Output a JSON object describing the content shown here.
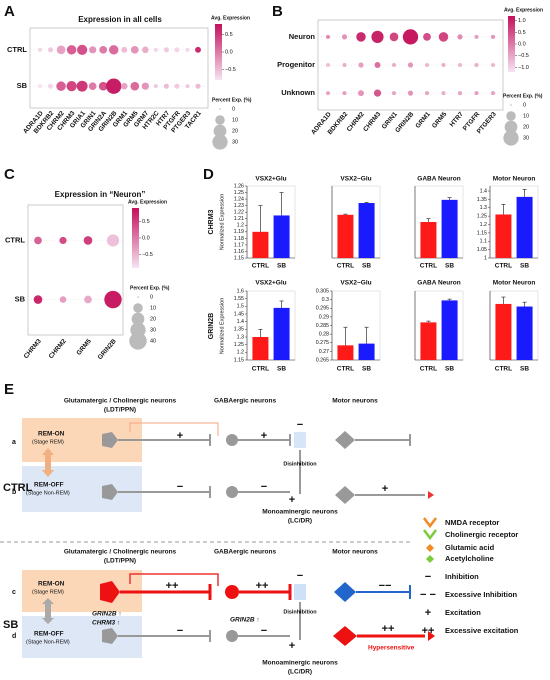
{
  "panel_labels": [
    "A",
    "B",
    "C",
    "D",
    "E"
  ],
  "chart_data": [
    {
      "type": "dot",
      "title": "Expression in all cells",
      "categories": [
        "ADRA1D",
        "BDKRB2",
        "CHRM2",
        "CHRM3",
        "GRIA1",
        "GRIN1",
        "GRIN2A",
        "GRIN2B",
        "GRM1",
        "GRM5",
        "GRM7",
        "HTR2C",
        "HTR7",
        "PTGFR",
        "PTGER3",
        "TACR1"
      ],
      "series": [
        {
          "name": "CTRL",
          "values": [
            -0.7,
            -0.6,
            -0.3,
            0.2,
            0.3,
            -0.2,
            0.0,
            0.1,
            -0.5,
            -0.2,
            -0.4,
            -0.7,
            -0.6,
            -0.7,
            -0.7,
            0.6
          ],
          "sizes": [
            1,
            2,
            8,
            10,
            12,
            5,
            6,
            10,
            3,
            6,
            4,
            1,
            2,
            2,
            1,
            3
          ]
        },
        {
          "name": "SB",
          "values": [
            -0.8,
            -0.7,
            0.2,
            0.4,
            0.5,
            0.0,
            0.3,
            0.7,
            -0.3,
            0.1,
            -0.2,
            -0.6,
            -0.5,
            -0.6,
            -0.6,
            -0.5
          ],
          "sizes": [
            1,
            2,
            10,
            12,
            14,
            6,
            8,
            30,
            4,
            8,
            5,
            1,
            2,
            2,
            1,
            2
          ]
        }
      ],
      "color_label": "Avg. Expression",
      "clim": [
        -0.8,
        0.8
      ],
      "cticks": [
        0.5,
        {
          "value": 0,
          "label": "0.0"
        },
        {
          "value": -0.5,
          "label": "−0.5"
        }
      ],
      "colormap": [
        "#f6e3f3",
        "#c4105a"
      ],
      "size_label": "Percent Exp. (%)",
      "size_ticks": [
        0,
        10,
        20,
        30
      ]
    },
    {
      "type": "dot",
      "categories": [
        "ADRA1D",
        "BDKRB2",
        "CHRM2",
        "CHRM3",
        "GRIN1",
        "GRIN2B",
        "GRM1",
        "GRM5",
        "HTR7",
        "PTGFR",
        "PTGER3"
      ],
      "series": [
        {
          "name": "Neuron",
          "values": [
            -0.2,
            -0.3,
            0.9,
            1.0,
            0.6,
            1.1,
            0.5,
            0.6,
            -0.2,
            -0.4,
            -0.3
          ],
          "sizes": [
            1,
            2,
            10,
            18,
            8,
            30,
            6,
            10,
            2,
            1,
            1
          ]
        },
        {
          "name": "Progenitor",
          "values": [
            -0.8,
            -0.6,
            -0.4,
            0.1,
            -0.6,
            -0.3,
            -0.7,
            -0.6,
            -0.7,
            -0.6,
            -0.7
          ],
          "sizes": [
            1,
            1,
            2,
            3,
            1,
            2,
            1,
            1,
            1,
            1,
            1
          ]
        },
        {
          "name": "Unknown",
          "values": [
            -0.5,
            -0.4,
            -0.3,
            0.4,
            -0.5,
            -0.3,
            -0.5,
            -0.6,
            -0.5,
            -0.4,
            -0.5
          ],
          "sizes": [
            1,
            1,
            3,
            5,
            1,
            2,
            1,
            1,
            1,
            1,
            1
          ]
        }
      ],
      "color_label": "Avg. Expression",
      "clim": [
        -1.2,
        1.2
      ],
      "cticks": [
        {
          "value": 1,
          "label": "1.0"
        },
        0.5,
        {
          "value": 0,
          "label": "0.0"
        },
        {
          "value": -0.5,
          "label": "−0.5"
        },
        {
          "value": -1,
          "label": "−1.0"
        }
      ],
      "colormap": [
        "#f6e3f3",
        "#c4105a"
      ],
      "size_label": "Percent Exp. (%)",
      "size_ticks": [
        0,
        10,
        20,
        30
      ]
    },
    {
      "type": "dot",
      "title": "Expression in “Neuron”",
      "categories": [
        "CHRM3",
        "CHRM2",
        "GRM5",
        "GRIN2B"
      ],
      "series": [
        {
          "name": "CTRL",
          "values": [
            0.2,
            0.4,
            0.5,
            -0.6
          ],
          "sizes": [
            6,
            5,
            8,
            18
          ]
        },
        {
          "name": "SB",
          "values": [
            0.7,
            -0.3,
            -0.4,
            0.8
          ],
          "sizes": [
            8,
            4,
            6,
            40
          ]
        }
      ],
      "color_label": "Avg. Expression",
      "clim": [
        -0.9,
        0.9
      ],
      "cticks": [
        0.5,
        {
          "value": 0,
          "label": "0.0"
        },
        {
          "value": -0.5,
          "label": "−0.5"
        }
      ],
      "colormap": [
        "#f6e3f3",
        "#c4105a"
      ],
      "size_label": "Percent Exp. (%)",
      "size_ticks": [
        0,
        10,
        20,
        30,
        40
      ]
    },
    {
      "type": "bar",
      "title": "VSX2+Glu",
      "categories": [
        "CTRL",
        "SB"
      ],
      "values": [
        1.19,
        1.215
      ],
      "errors": [
        0.04,
        0.035
      ],
      "colors": [
        "#ff1a1a",
        "#1a1aff"
      ],
      "ylim": [
        1.15,
        1.26
      ],
      "yticks": [
        1.15,
        1.16,
        1.17,
        1.18,
        1.19,
        1.2,
        1.21,
        1.22,
        1.23,
        1.24,
        1.25,
        1.26
      ]
    },
    {
      "type": "bar",
      "title": "VSX2−Glu",
      "categories": [
        "CTRL",
        "SB"
      ],
      "values": [
        0.66,
        0.84
      ],
      "errors": [
        0.01,
        0.01
      ],
      "colors": [
        "#ff1a1a",
        "#1a1aff"
      ],
      "ylim": [
        0,
        1.1
      ]
    },
    {
      "type": "bar",
      "title": "GABA Neuron",
      "categories": [
        "CTRL",
        "SB"
      ],
      "values": [
        0.13,
        0.21
      ],
      "errors": [
        0.012,
        0.008
      ],
      "colors": [
        "#ff1a1a",
        "#1a1aff"
      ],
      "ylim": [
        0,
        0.26
      ]
    },
    {
      "type": "bar",
      "title": "Motor Neuron",
      "categories": [
        "CTRL",
        "SB"
      ],
      "values": [
        1.26,
        1.365
      ],
      "errors": [
        0.06,
        0.045
      ],
      "colors": [
        "#ff1a1a",
        "#1a1aff"
      ],
      "ylim": [
        1,
        1.43
      ],
      "yticks": [
        1,
        1.05,
        1.1,
        1.15,
        1.2,
        1.25,
        1.3,
        1.35,
        1.4
      ]
    },
    {
      "type": "bar",
      "title": "VSX2+Glu",
      "categories": [
        "CTRL",
        "SB"
      ],
      "values": [
        1.3,
        1.49
      ],
      "errors": [
        0.05,
        0.045
      ],
      "colors": [
        "#ff1a1a",
        "#1a1aff"
      ],
      "ylim": [
        1.15,
        1.6
      ],
      "yticks": [
        1.15,
        1.2,
        1.25,
        1.3,
        1.35,
        1.4,
        1.45,
        1.5,
        1.55,
        1.6
      ]
    },
    {
      "type": "bar",
      "title": "VSX2−Glu",
      "categories": [
        "CTRL",
        "SB"
      ],
      "values": [
        0.2735,
        0.2745
      ],
      "errors": [
        0.0105,
        0.0095
      ],
      "colors": [
        "#ff1a1a",
        "#1a1aff"
      ],
      "ylim": [
        0.265,
        0.305
      ],
      "yticks": [
        0.265,
        0.27,
        0.275,
        0.28,
        0.285,
        0.29,
        0.295,
        0.3,
        0.305
      ]
    },
    {
      "type": "bar",
      "title": "GABA Neuron",
      "categories": [
        "CTRL",
        "SB"
      ],
      "values": [
        0.6,
        0.95
      ],
      "errors": [
        0.02,
        0.02
      ],
      "colors": [
        "#ff1a1a",
        "#1a1aff"
      ],
      "ylim": [
        0,
        1.1
      ]
    },
    {
      "type": "bar",
      "title": "Motor Neuron",
      "categories": [
        "CTRL",
        "SB"
      ],
      "values": [
        1.3,
        1.24
      ],
      "errors": [
        0.16,
        0.1
      ],
      "colors": [
        "#ff1a1a",
        "#1a1aff"
      ],
      "ylim": [
        0,
        1.6
      ]
    }
  ],
  "figure_d": {
    "row_labels": [
      "CHRM3",
      "GRIN2B"
    ],
    "y_label": "Normalized Expression"
  },
  "diagram": {
    "headers": {
      "glut": "Glutamatergic / Cholinergic neurons",
      "ldt": "(LDT/PPN)",
      "gaba": "GABAergic neurons",
      "motor": "Motor neurons"
    },
    "rem_on": "REM-ON",
    "rem_on_stage": "(Stage REM)",
    "rem_off": "REM-OFF",
    "rem_off_stage": "(Stage Non-REM)",
    "disinhibition": "Disinhibition",
    "mono": "Monoaminergic neurons",
    "mono_sub": "(LC/DR)",
    "ctrl": {
      "label": "CTRL",
      "rows": [
        "a",
        "b"
      ],
      "signs": [
        "+",
        "+",
        "−",
        "−",
        "−",
        "+",
        "+"
      ]
    },
    "sb": {
      "label": "SB",
      "rows": [
        "c",
        "d"
      ],
      "signs": [
        "++",
        "++",
        "−",
        "−−",
        "−",
        "−",
        "+",
        "++"
      ],
      "genes": [
        "GRIN2B ↑",
        "CHRM3 ↑",
        "GRIN2B ↑"
      ],
      "hypersensitive": "Hypersensitive"
    },
    "legend": [
      "NMDA receptor",
      "Cholinergic receptor",
      "Glutamic acid",
      "Acetylcholine",
      "Inhibition",
      "Excessive Inhibition",
      "Excitation",
      "Excessive excitation"
    ],
    "legend_symbols": [
      "−",
      "− −",
      "+",
      "++"
    ]
  }
}
